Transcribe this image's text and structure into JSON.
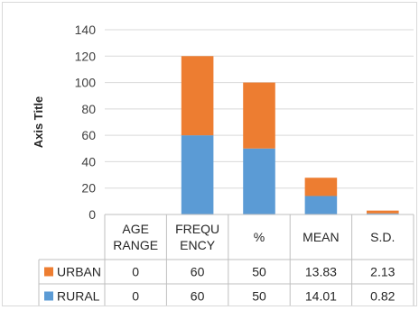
{
  "chart_data": {
    "type": "bar",
    "stacked": true,
    "categories": [
      "AGE RANGE",
      "FREQUENCY",
      "%",
      "MEAN",
      "S.D."
    ],
    "category_labels": [
      [
        "AGE",
        "RANGE"
      ],
      [
        "FREQU",
        "ENCY"
      ],
      [
        "%"
      ],
      [
        "MEAN"
      ],
      [
        "S.D."
      ]
    ],
    "series": [
      {
        "name": "RURAL",
        "color": "#5b9bd5",
        "values": [
          0,
          60,
          50,
          14.01,
          0.82
        ],
        "value_labels": [
          "0",
          "60",
          "50",
          "14.01",
          "0.82"
        ]
      },
      {
        "name": "URBAN",
        "color": "#ed7d31",
        "values": [
          0,
          60,
          50,
          13.83,
          2.13
        ],
        "value_labels": [
          "0",
          "60",
          "50",
          "13.83",
          "2.13"
        ]
      }
    ],
    "table_order": [
      "URBAN",
      "RURAL"
    ],
    "ylabel": "Axis Title",
    "ylim": [
      0,
      140
    ],
    "yticks": [
      0,
      20,
      40,
      60,
      80,
      100,
      120,
      140
    ],
    "grid": true,
    "legend": "data-table"
  }
}
